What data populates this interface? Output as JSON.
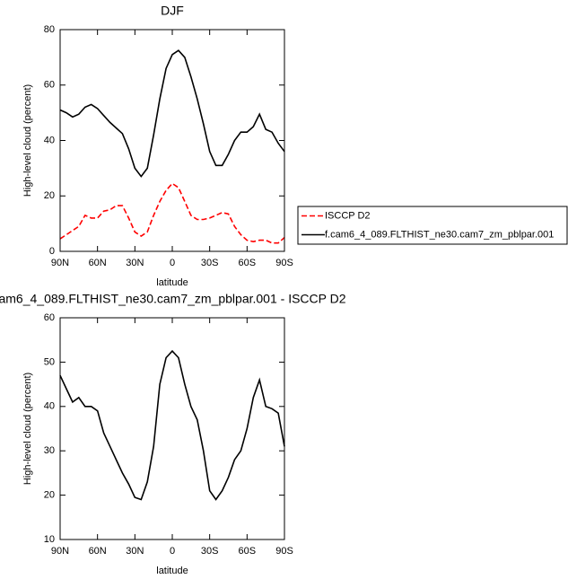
{
  "chart_data": [
    {
      "type": "line",
      "title": "DJF",
      "xlabel": "latitude",
      "ylabel": "High-level cloud (percent)",
      "x": [
        90,
        85,
        80,
        75,
        70,
        65,
        60,
        55,
        50,
        45,
        40,
        35,
        30,
        25,
        20,
        15,
        10,
        5,
        0,
        -5,
        -10,
        -15,
        -20,
        -25,
        -30,
        -35,
        -40,
        -45,
        -50,
        -55,
        -60,
        -65,
        -70,
        -75,
        -80,
        -85,
        -90
      ],
      "xlim": [
        90,
        -90
      ],
      "xticks": [
        {
          "value": 90,
          "label": "90N"
        },
        {
          "value": 60,
          "label": "60N"
        },
        {
          "value": 30,
          "label": "30N"
        },
        0,
        {
          "value": -30,
          "label": "30S"
        },
        {
          "value": -60,
          "label": "60S"
        },
        {
          "value": -90,
          "label": "90S"
        }
      ],
      "ylim": [
        0,
        80
      ],
      "yticks": [
        0,
        20,
        40,
        60,
        80
      ],
      "series": [
        {
          "name": "ISCCP D2",
          "color": "#ff0000",
          "dash": true,
          "values": [
            4.5,
            6,
            7.5,
            9,
            13,
            12,
            12,
            14.5,
            15,
            16.5,
            16.5,
            12,
            7,
            5.5,
            7,
            13,
            18,
            22,
            24.5,
            23,
            18,
            13,
            11.5,
            11.5,
            12,
            13,
            14,
            13.5,
            9,
            6,
            4,
            3.5,
            4,
            4,
            3,
            3,
            5
          ]
        },
        {
          "name": "f.cam6_4_089.FLTHIST_ne30.cam7_zm_pblpar.001",
          "color": "#000000",
          "dash": false,
          "values": [
            51,
            50,
            48.5,
            49.5,
            52,
            53,
            51.5,
            49,
            46.5,
            44.5,
            42.5,
            37,
            30,
            27,
            30,
            42,
            55,
            66,
            71,
            72.5,
            70,
            63,
            55,
            46,
            36,
            31,
            31,
            35,
            40,
            43,
            43,
            45,
            49.5,
            44,
            43,
            39,
            36
          ]
        }
      ]
    },
    {
      "type": "line",
      "title": "am6_4_089.FLTHIST_ne30.cam7_zm_pblpar.001 - ISCCP D2",
      "xlabel": "latitude",
      "ylabel": "High-level cloud (percent)",
      "x": [
        90,
        85,
        80,
        75,
        70,
        65,
        60,
        55,
        50,
        45,
        40,
        35,
        30,
        25,
        20,
        15,
        10,
        5,
        0,
        -5,
        -10,
        -15,
        -20,
        -25,
        -30,
        -35,
        -40,
        -45,
        -50,
        -55,
        -60,
        -65,
        -70,
        -75,
        -80,
        -85,
        -90
      ],
      "xlim": [
        90,
        -90
      ],
      "xticks": [
        {
          "value": 90,
          "label": "90N"
        },
        {
          "value": 60,
          "label": "60N"
        },
        {
          "value": 30,
          "label": "30N"
        },
        0,
        {
          "value": -30,
          "label": "30S"
        },
        {
          "value": -60,
          "label": "60S"
        },
        {
          "value": -90,
          "label": "90S"
        }
      ],
      "ylim": [
        10,
        60
      ],
      "yticks": [
        10,
        20,
        30,
        40,
        50,
        60
      ],
      "series": [
        {
          "color": "#000000",
          "dash": false,
          "values": [
            47,
            44,
            41,
            42,
            40,
            40,
            39,
            34,
            31,
            28,
            25,
            22.5,
            19.5,
            19,
            23,
            31,
            45,
            51,
            52.5,
            51,
            45,
            40,
            37,
            30,
            21,
            19,
            21,
            24,
            28,
            30,
            35,
            42,
            46,
            40,
            39.5,
            38.5,
            31
          ]
        }
      ]
    }
  ]
}
